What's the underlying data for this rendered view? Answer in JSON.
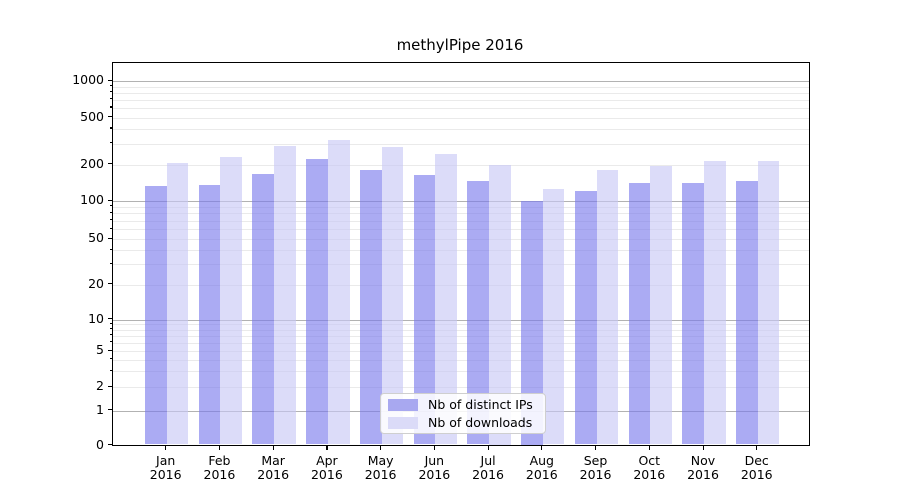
{
  "chart_data": {
    "type": "bar",
    "title": "methylPipe 2016",
    "categories": [
      "Jan 2016",
      "Feb 2016",
      "Mar 2016",
      "Apr 2016",
      "May 2016",
      "Jun 2016",
      "Jul 2016",
      "Aug 2016",
      "Sep 2016",
      "Oct 2016",
      "Nov 2016",
      "Dec 2016"
    ],
    "series": [
      {
        "name": "Nb of distinct IPs",
        "values": [
          132,
          135,
          167,
          222,
          180,
          165,
          145,
          100,
          120,
          140,
          142,
          145
        ]
      },
      {
        "name": "Nb of downloads",
        "values": [
          205,
          230,
          285,
          320,
          280,
          245,
          200,
          126,
          180,
          196,
          215,
          216
        ]
      }
    ],
    "yscale": "symlog",
    "y_ticks": [
      0,
      1,
      2,
      5,
      10,
      20,
      50,
      100,
      200,
      500,
      1000
    ],
    "ylim": [
      0,
      1342
    ],
    "grid": "horizontal",
    "legend_position": "lower center"
  },
  "y_axis": {
    "ticks": [
      {
        "label": "0",
        "value": 0
      },
      {
        "label": "1",
        "value": 1
      },
      {
        "label": "2",
        "value": 2
      },
      {
        "label": "5",
        "value": 5
      },
      {
        "label": "10",
        "value": 10
      },
      {
        "label": "20",
        "value": 20
      },
      {
        "label": "50",
        "value": 50
      },
      {
        "label": "100",
        "value": 100
      },
      {
        "label": "200",
        "value": 200
      },
      {
        "label": "500",
        "value": 500
      },
      {
        "label": "1000",
        "value": 1000
      }
    ]
  },
  "x_axis": {
    "ticks": [
      {
        "line1": "Jan",
        "line2": "2016"
      },
      {
        "line1": "Feb",
        "line2": "2016"
      },
      {
        "line1": "Mar",
        "line2": "2016"
      },
      {
        "line1": "Apr",
        "line2": "2016"
      },
      {
        "line1": "May",
        "line2": "2016"
      },
      {
        "line1": "Jun",
        "line2": "2016"
      },
      {
        "line1": "Jul",
        "line2": "2016"
      },
      {
        "line1": "Aug",
        "line2": "2016"
      },
      {
        "line1": "Sep",
        "line2": "2016"
      },
      {
        "line1": "Oct",
        "line2": "2016"
      },
      {
        "line1": "Nov",
        "line2": "2016"
      },
      {
        "line1": "Dec",
        "line2": "2016"
      }
    ]
  },
  "legend": {
    "items": [
      {
        "label": "Nb of distinct IPs",
        "series": "ips"
      },
      {
        "label": "Nb of downloads",
        "series": "downloads"
      }
    ]
  },
  "colors": {
    "ips_bar": "rgba(120,120,235,0.62)",
    "downloads_bar": "rgba(198,198,245,0.62)",
    "ips_swatch": "#a8a8f0",
    "downloads_swatch": "#dbdbf8",
    "major_grid": "#b2b2b2",
    "minor_grid": "#eaeaea",
    "axis_line": "#000000"
  }
}
